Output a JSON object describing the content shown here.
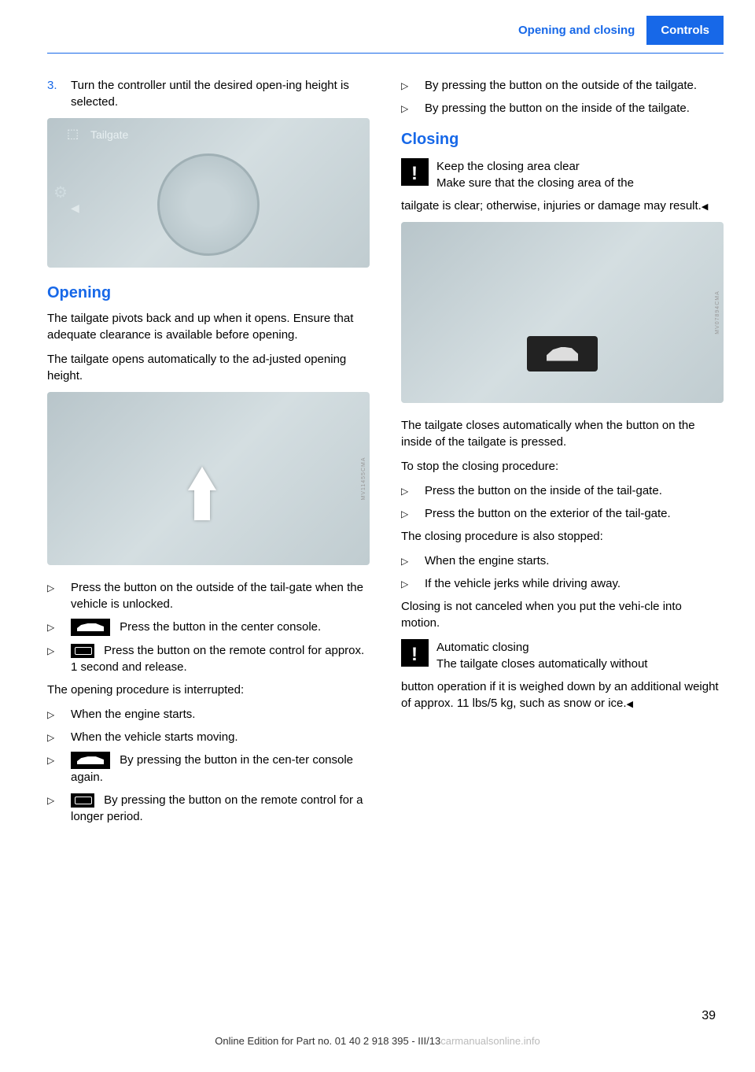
{
  "header": {
    "section": "Opening and closing",
    "chapter": "Controls"
  },
  "left_col": {
    "step3_num": "3.",
    "step3_text": "Turn the controller until the desired open‐ing height is selected.",
    "dial_label": "Tailgate",
    "img1_side": "",
    "heading_opening": "Opening",
    "opening_p1": "The tailgate pivots back and up when it opens. Ensure that adequate clearance is available before opening.",
    "opening_p2": "The tailgate opens automatically to the ad‐justed opening height.",
    "img2_side": "MV11455CMA",
    "bullets_open": [
      "Press the button on the outside of the tail‐gate when the vehicle is unlocked.",
      "Press the button in the center console.",
      "Press the button on the remote control for approx. 1 second and release."
    ],
    "interrupt_intro": "The opening procedure is interrupted:",
    "bullets_interrupt": [
      "When the engine starts.",
      "When the vehicle starts moving.",
      "By pressing the button in the cen‐ter console again.",
      "By pressing the button on the remote control for a longer period."
    ]
  },
  "right_col": {
    "bullets_top": [
      "By pressing the button on the outside of the tailgate.",
      "By pressing the button on the inside of the tailgate."
    ],
    "heading_closing": "Closing",
    "warn1_line1": "Keep the closing area clear",
    "warn1_line2": "Make sure that the closing area of the",
    "warn1_cont": "tailgate is clear; otherwise, injuries or damage may result.",
    "img3_side": "MV07894CMA",
    "closing_p1": "The tailgate closes automatically when the button on the inside of the tailgate is pressed.",
    "closing_p2": "To stop the closing procedure:",
    "bullets_stop": [
      "Press the button on the inside of the tail‐gate.",
      "Press the button on the exterior of the tail‐gate."
    ],
    "closing_p3": "The closing procedure is also stopped:",
    "bullets_also": [
      "When the engine starts.",
      "If the vehicle jerks while driving away."
    ],
    "closing_p4": "Closing is not canceled when you put the vehi‐cle into motion.",
    "warn2_line1": "Automatic closing",
    "warn2_line2": "The tailgate closes automatically without",
    "warn2_cont": "button operation if it is weighed down by an additional weight of approx. 11 lbs/5 kg, such as snow or ice."
  },
  "footer": {
    "text": "Online Edition for Part no. 01 40 2 918 395 - III/13",
    "watermark": "carmanualsonline.info",
    "page": "39"
  }
}
